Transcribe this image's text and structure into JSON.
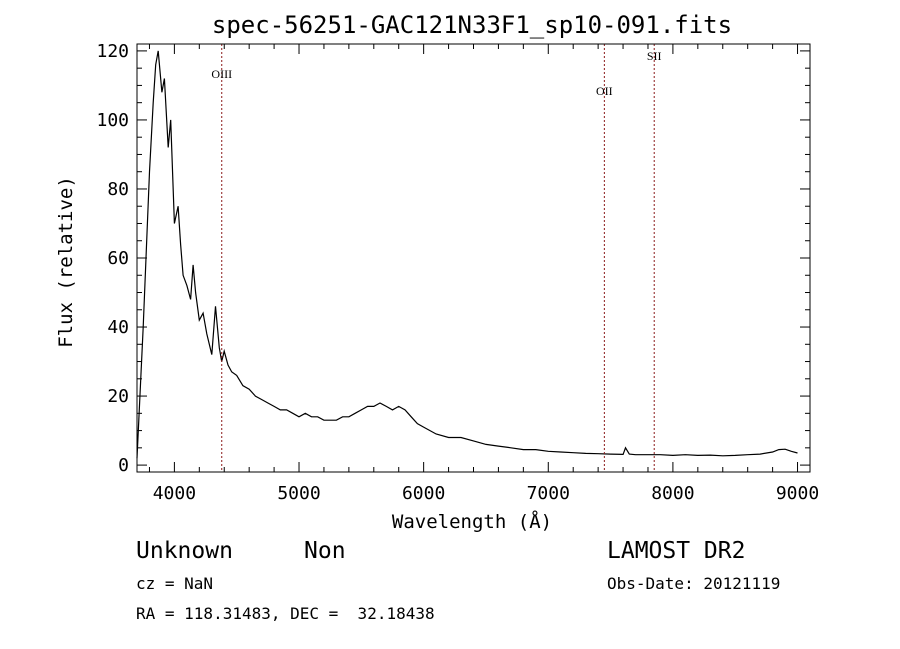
{
  "chart_data": {
    "type": "line",
    "title": "spec-56251-GAC121N33F1_sp10-091.fits",
    "xlabel": "Wavelength (Å)",
    "ylabel": "Flux (relative)",
    "xlim": [
      3700,
      9100
    ],
    "ylim": [
      -2,
      122
    ],
    "x_ticks": [
      4000,
      5000,
      6000,
      7000,
      8000,
      9000
    ],
    "y_ticks": [
      0,
      20,
      40,
      60,
      80,
      100,
      120
    ],
    "x_minor_step": 200,
    "y_minor_step": 5,
    "grid": false,
    "line_color": "#000000",
    "series": [
      {
        "x": [
          3700,
          3750,
          3800,
          3830,
          3850,
          3870,
          3900,
          3920,
          3950,
          3970,
          4000,
          4030,
          4050,
          4070,
          4100,
          4130,
          4150,
          4170,
          4200,
          4230,
          4260,
          4300,
          4330,
          4360,
          4380,
          4400,
          4430,
          4460,
          4500,
          4550,
          4600,
          4650,
          4700,
          4750,
          4800,
          4850,
          4900,
          4950,
          5000,
          5050,
          5100,
          5150,
          5200,
          5250,
          5300,
          5350,
          5400,
          5450,
          5500,
          5550,
          5600,
          5650,
          5700,
          5750,
          5800,
          5850,
          5900,
          5950,
          6000,
          6100,
          6200,
          6300,
          6400,
          6500,
          6600,
          6700,
          6800,
          6900,
          7000,
          7100,
          7200,
          7300,
          7400,
          7500,
          7600,
          7620,
          7650,
          7700,
          7800,
          7900,
          8000,
          8100,
          8200,
          8300,
          8400,
          8500,
          8600,
          8700,
          8800,
          8850,
          8900,
          8950,
          9000
        ],
        "y": [
          2,
          40,
          85,
          105,
          116,
          120,
          108,
          112,
          92,
          100,
          70,
          75,
          64,
          55,
          52,
          48,
          58,
          50,
          42,
          44,
          38,
          32,
          46,
          34,
          30,
          33,
          29,
          27,
          26,
          23,
          22,
          20,
          19,
          18,
          17,
          16,
          16,
          15,
          14,
          15,
          14,
          14,
          13,
          13,
          13,
          14,
          14,
          15,
          16,
          17,
          17,
          18,
          17,
          16,
          17,
          16,
          14,
          12,
          11,
          9,
          8,
          8,
          7,
          6,
          5.5,
          5,
          4.5,
          4.5,
          4,
          3.8,
          3.6,
          3.4,
          3.3,
          3.2,
          3.1,
          5,
          3.2,
          3.0,
          3.0,
          3.0,
          2.8,
          3.0,
          2.8,
          2.9,
          2.7,
          2.8,
          3.0,
          3.2,
          3.8,
          4.5,
          4.6,
          4.0,
          3.5
        ]
      }
    ],
    "lines": [
      {
        "label": "OIII",
        "x": 4380
      },
      {
        "label": "OII",
        "x": 7450
      },
      {
        "label": "SII",
        "x": 7850
      }
    ],
    "line_marker_color": "#8b1a1a"
  },
  "info": {
    "class": "Unknown",
    "subclass": "Non",
    "survey": "LAMOST DR2",
    "cz": "cz = NaN",
    "obs_date": "Obs-Date: 20121119",
    "coords": "RA = 118.31483, DEC =  32.18438"
  }
}
